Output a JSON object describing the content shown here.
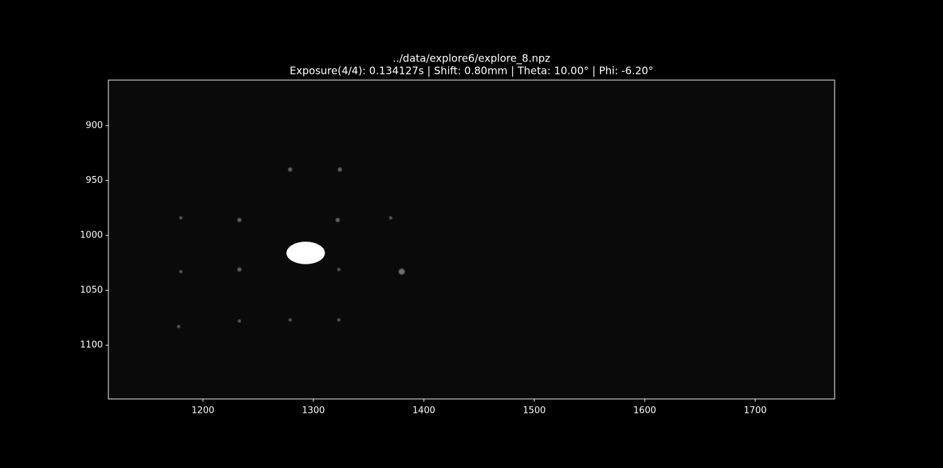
{
  "chart_data": {
    "type": "image",
    "title": "../data/explore6/explore_8.npz",
    "subtitle": "Exposure(4/4): 0.134127s | Shift:   0.80mm | Theta:  10.00° | Phi:  -6.20°",
    "x": [
      1293,
      1279,
      1324,
      1233,
      1322,
      1180,
      1370,
      1233,
      1180,
      1380,
      1323,
      1233,
      1279,
      1323,
      1178
    ],
    "values": [
      1016,
      940,
      940,
      986,
      986,
      984,
      984,
      1031,
      1033,
      1033,
      1031,
      1078,
      1077,
      1077,
      1083
    ],
    "sizes": [
      12,
      2.5,
      2.5,
      2.5,
      2.5,
      2,
      2,
      2.5,
      2,
      3.5,
      2,
      2,
      2,
      2,
      2
    ],
    "color": "#ffffff",
    "xlim": [
      1114.4,
      1771.9
    ],
    "ylim": [
      1149,
      858.5
    ],
    "xticks": [
      1200,
      1300,
      1400,
      1500,
      1600,
      1700
    ],
    "yticks": [
      900,
      950,
      1000,
      1050,
      1100
    ]
  }
}
